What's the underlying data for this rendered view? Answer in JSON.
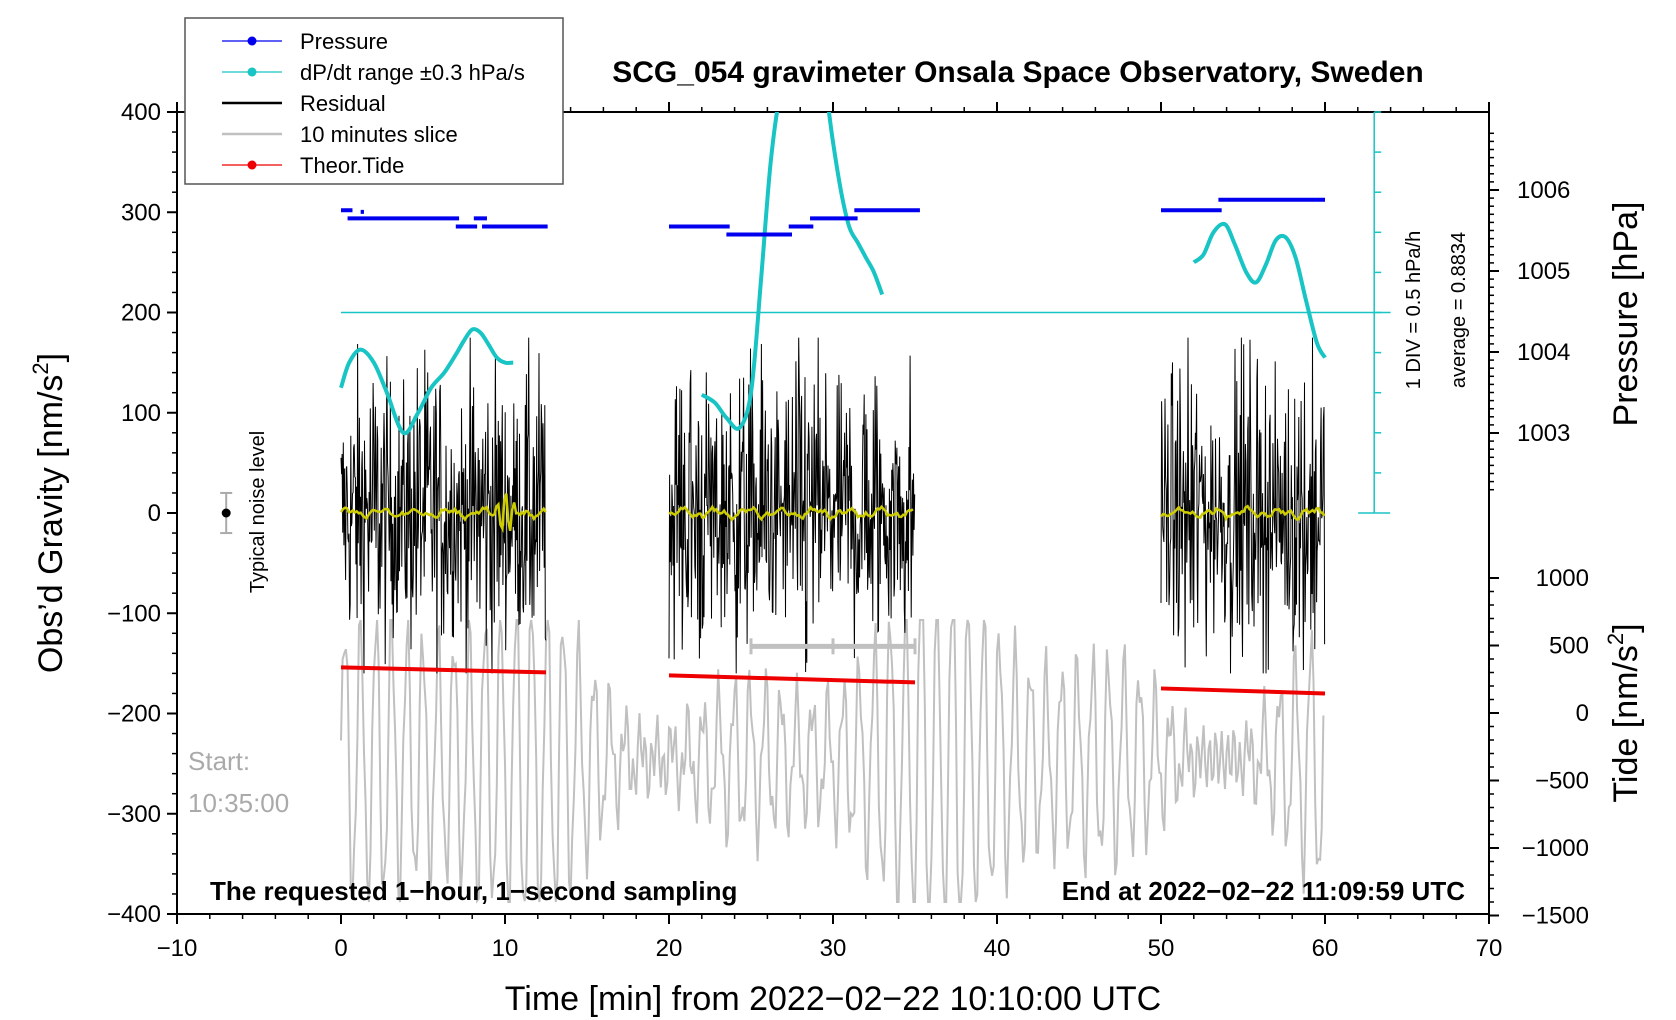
{
  "colors": {
    "pressure": "#0000ee",
    "dpdt": "#18c4c4",
    "residual": "#000000",
    "slice": "#c0c0c0",
    "tide": "#ee0000",
    "yellow": "#cccc00"
  },
  "chart_data": {
    "type": "line",
    "title": "SCG_054 gravimeter Onsala Space Observatory, Sweden",
    "xlabel": "Time [min] from 2022−02−22 10:10:00 UTC",
    "ylabel_left_main": "Obs’d Gravity [nm/s",
    "ylabel_left_sup": "2",
    "ylabel_left_end": "]",
    "ylabel_right_pressure": "Pressure [hPa]",
    "ylabel_right_tide_main": "Tide [nm/s",
    "ylabel_right_tide_sup": "2",
    "ylabel_right_tide_end": "]",
    "xlim": [
      -10,
      70
    ],
    "ylim": [
      -400,
      400
    ],
    "pressure_lim": [
      1002,
      1007
    ],
    "tide_lim": [
      -1500,
      1500
    ],
    "x_ticks": [
      -10,
      0,
      10,
      20,
      30,
      40,
      50,
      60,
      70
    ],
    "x_tick_labels": [
      "−10",
      "0",
      "10",
      "20",
      "30",
      "40",
      "50",
      "60",
      "70"
    ],
    "y_ticks": [
      -400,
      -300,
      -200,
      -100,
      0,
      100,
      200,
      300,
      400
    ],
    "y_tick_labels": [
      "−400",
      "−300",
      "−200",
      "−100",
      "0",
      "100",
      "200",
      "300",
      "400"
    ],
    "pressure_ticks": [
      1003,
      1004,
      1005,
      1006
    ],
    "pressure_tick_labels": [
      "1003",
      "1004",
      "1005",
      "1006"
    ],
    "tide_ticks": [
      -1500,
      -1000,
      -500,
      0,
      500,
      1000
    ],
    "tide_tick_labels": [
      "−1500",
      "−1000",
      "−500",
      "0",
      "500",
      "1000"
    ],
    "legend": [
      {
        "label": "Pressure",
        "key": "pressure",
        "style": "line-dot"
      },
      {
        "label": "dP/dt range ±0.3 hPa/s",
        "key": "dpdt",
        "style": "line-dot"
      },
      {
        "label": "Residual",
        "key": "residual",
        "style": "line"
      },
      {
        "label": "10 minutes slice",
        "key": "slice",
        "style": "line"
      },
      {
        "label": "Theor.Tide",
        "key": "tide",
        "style": "line-dot"
      }
    ],
    "segments": [
      {
        "x_start": 0,
        "x_end": 12.5
      },
      {
        "x_start": 20,
        "x_end": 35
      },
      {
        "x_start": 50,
        "x_end": 60
      }
    ],
    "pressure_series": [
      {
        "x_start": 0,
        "x_end": 0.7,
        "value": 1005.75
      },
      {
        "x_start": 1.2,
        "x_end": 1.4,
        "value": 1005.73
      },
      {
        "x_start": 0.4,
        "x_end": 7.2,
        "value": 1005.65
      },
      {
        "x_start": 7.0,
        "x_end": 8.3,
        "value": 1005.55
      },
      {
        "x_start": 8.1,
        "x_end": 8.9,
        "value": 1005.65
      },
      {
        "x_start": 8.6,
        "x_end": 12.6,
        "value": 1005.55
      },
      {
        "x_start": 20,
        "x_end": 23.7,
        "value": 1005.55
      },
      {
        "x_start": 23.5,
        "x_end": 27.5,
        "value": 1005.45
      },
      {
        "x_start": 27.3,
        "x_end": 28.8,
        "value": 1005.55
      },
      {
        "x_start": 28.6,
        "x_end": 31.5,
        "value": 1005.65
      },
      {
        "x_start": 31.3,
        "x_end": 35.3,
        "value": 1005.75
      },
      {
        "x_start": 50,
        "x_end": 53.7,
        "value": 1005.75
      },
      {
        "x_start": 53.5,
        "x_end": 60,
        "value": 1005.88
      }
    ],
    "dpdt_series": [
      {
        "x": [
          0,
          0.5,
          1.2,
          2.0,
          2.8,
          3.8,
          4.7,
          5.5,
          6.3,
          7.0,
          7.5,
          8.0,
          8.5,
          9.0,
          9.5,
          10.0,
          10.5
        ],
        "y": [
          125,
          150,
          163,
          150,
          120,
          80,
          100,
          125,
          140,
          158,
          172,
          183,
          180,
          168,
          155,
          150,
          150
        ]
      },
      {
        "x": [
          22,
          22.8,
          23.5,
          24.3,
          25,
          25.6,
          26.2,
          26.8,
          27.2
        ],
        "y": [
          118,
          110,
          95,
          85,
          120,
          230,
          350,
          420,
          430
        ]
      },
      {
        "x": [
          29.6,
          30.0,
          30.5,
          31.0,
          31.5,
          32.0,
          32.5,
          33.0
        ],
        "y": [
          420,
          370,
          320,
          285,
          270,
          255,
          240,
          218
        ]
      },
      {
        "x": [
          52,
          52.6,
          53.2,
          53.9,
          54.5,
          55.2,
          55.8,
          56.4,
          57.0,
          57.6,
          58.2,
          58.8,
          59.5,
          60
        ],
        "y": [
          250,
          258,
          280,
          288,
          268,
          240,
          230,
          248,
          272,
          275,
          255,
          215,
          170,
          155
        ]
      }
    ],
    "noise_level_label": "Typical noise level",
    "noise_level": {
      "x": -7,
      "y": 0,
      "err": 20
    },
    "ten_minutes_slice": {
      "x_start": 25,
      "x_end": 35,
      "y": -133
    },
    "tide_lines": [
      {
        "x_start": 0,
        "x_end": 12.5,
        "y_start": -154,
        "y_end": -159
      },
      {
        "x_start": 20,
        "x_end": 35,
        "y_start": -162,
        "y_end": -169
      },
      {
        "x_start": 50,
        "x_end": 60,
        "y_start": -175,
        "y_end": -180
      }
    ],
    "pressure_baseline_value": 200,
    "scale_bar": {
      "x": 63,
      "y_bottom": 0,
      "y_top": 400
    },
    "scale_label": "1 DIV = 0.5 hPa/h",
    "average_label": "average = 0.8834",
    "note_left": "The requested 1−hour, 1−second sampling",
    "note_right": "End at 2022−02−22 11:09:59 UTC",
    "start_label_1": "Start:",
    "start_label_2": "10:35:00"
  }
}
